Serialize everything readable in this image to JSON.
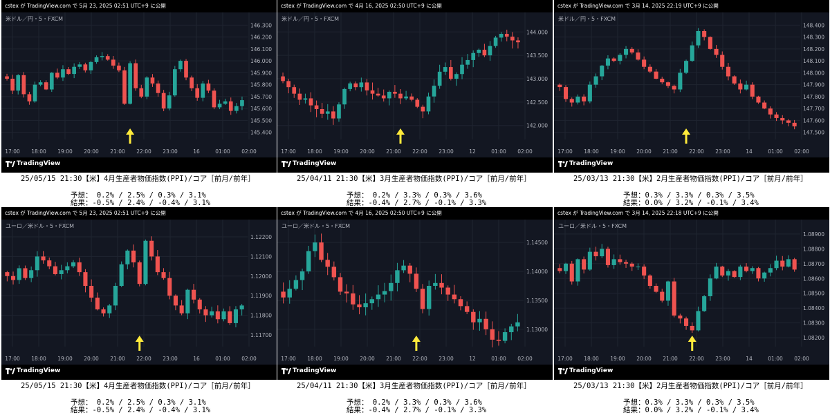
{
  "brand": "TradingView",
  "colors": {
    "bg": "#131722",
    "up": "#26a69a",
    "down": "#ef5350",
    "arrow": "#ffeb3b",
    "grid": "#1f2430",
    "text": "#b2b5be"
  },
  "panels": [
    {
      "header": "cstex が TradingView.com で 5月 23, 2025 02:51 UTC+9 に公開",
      "symbol": "米ドル／円・5・FXCM",
      "y_ticks": [
        "146.300",
        "146.200",
        "146.100",
        "146.000",
        "145.900",
        "145.800",
        "145.700",
        "145.600",
        "145.500",
        "145.400"
      ],
      "x_ticks": [
        "17:00",
        "18:00",
        "19:00",
        "20:00",
        "21:00",
        "22:00",
        "23:00",
        "16",
        "01:00",
        "02:00"
      ],
      "chart_data": {
        "type": "candlestick",
        "closes": [
          145.85,
          145.75,
          145.88,
          145.72,
          145.66,
          145.8,
          145.82,
          145.76,
          145.9,
          145.86,
          145.93,
          145.89,
          145.95,
          145.97,
          145.92,
          145.99,
          146.03,
          146.04,
          146.01,
          145.96,
          145.92,
          145.64,
          145.98,
          145.77,
          145.7,
          145.86,
          145.81,
          145.73,
          145.6,
          145.71,
          145.93,
          146.0,
          145.86,
          145.77,
          145.69,
          145.81,
          145.75,
          145.61,
          145.64,
          145.66,
          145.58,
          145.62,
          145.67
        ],
        "event_index": 22
      }
    },
    {
      "header": "cstex が TradingView.com で 4月 16, 2025 02:50 UTC+9 に公開",
      "symbol": "米ドル／円・5・FXCM",
      "y_ticks": [
        "144.000",
        "143.500",
        "143.000",
        "142.500",
        "142.000"
      ],
      "x_ticks": [
        "17:00",
        "18:00",
        "19:00",
        "20:00",
        "21:00",
        "22:00",
        "23:00",
        "12",
        "01:00",
        "02:00"
      ],
      "chart_data": {
        "type": "candlestick",
        "closes": [
          142.95,
          142.82,
          142.68,
          142.55,
          142.58,
          142.43,
          142.35,
          142.25,
          142.3,
          142.15,
          142.45,
          142.78,
          142.9,
          142.82,
          142.92,
          142.75,
          142.68,
          142.64,
          142.58,
          142.72,
          142.68,
          142.58,
          142.62,
          142.55,
          142.4,
          142.3,
          142.62,
          142.85,
          143.15,
          143.25,
          143.0,
          143.1,
          143.3,
          143.4,
          143.55,
          143.62,
          143.5,
          143.7,
          143.88,
          143.96,
          143.9,
          143.82,
          143.78
        ],
        "event_index": 21
      }
    },
    {
      "header": "cstex が TradingView.com で 3月 14, 2025 22:19 UTC+9 に公開",
      "symbol": "米ドル／円・5・FXCM",
      "y_ticks": [
        "148.400",
        "148.300",
        "148.200",
        "148.100",
        "148.000",
        "147.900",
        "147.800",
        "147.700",
        "147.600",
        "147.500"
      ],
      "x_ticks": [
        "17:00",
        "18:00",
        "19:00",
        "20:00",
        "21:00",
        "22:00",
        "23:00",
        "14",
        "01:00",
        "02:00"
      ],
      "chart_data": {
        "type": "candlestick",
        "closes": [
          147.88,
          147.78,
          147.75,
          147.8,
          147.76,
          147.9,
          147.97,
          148.06,
          148.12,
          148.1,
          148.15,
          148.2,
          148.17,
          148.11,
          148.05,
          148.01,
          147.95,
          147.92,
          147.89,
          147.86,
          148.0,
          148.1,
          148.23,
          148.35,
          148.3,
          148.2,
          148.15,
          148.05,
          147.97,
          147.91,
          147.86,
          147.9,
          147.8,
          147.75,
          147.7,
          147.65,
          147.62,
          147.6,
          147.58,
          147.55
        ],
        "event_index": 21
      }
    },
    {
      "header": "cstex が TradingView.com で 5月 23, 2025 02:51 UTC+9 に公開",
      "symbol": "ユーロ／米ドル・5・FXCM",
      "y_ticks": [
        "1.12200",
        "1.12100",
        "1.12000",
        "1.11900",
        "1.11800",
        "1.11700"
      ],
      "x_ticks": [
        "17:00",
        "18:00",
        "19:00",
        "20:00",
        "21:00",
        "22:00",
        "23:00",
        "16",
        "01:00",
        "02:00"
      ],
      "chart_data": {
        "type": "candlestick",
        "closes": [
          1.12,
          1.1198,
          1.1204,
          1.1199,
          1.1203,
          1.121,
          1.1208,
          1.1205,
          1.1201,
          1.1203,
          1.1205,
          1.1207,
          1.1202,
          1.1195,
          1.1189,
          1.1183,
          1.1181,
          1.1185,
          1.1195,
          1.1206,
          1.1213,
          1.1207,
          1.1196,
          1.1218,
          1.121,
          1.1202,
          1.1199,
          1.119,
          1.1185,
          1.1181,
          1.1193,
          1.1188,
          1.1183,
          1.118,
          1.1182,
          1.1178,
          1.1182,
          1.1176,
          1.1183,
          1.1185
        ],
        "event_index": 22
      }
    },
    {
      "header": "cstex が TradingView.com で 4月 16, 2025 02:50 UTC+9 に公開",
      "symbol": "ユーロ／米ドル・5・FXCM",
      "y_ticks": [
        "1.14500",
        "1.14000",
        "1.13500",
        "1.13000"
      ],
      "x_ticks": [
        "17:00",
        "18:00",
        "19:00",
        "20:00",
        "21:00",
        "22:00",
        "23:00",
        "12",
        "01:00",
        "02:00"
      ],
      "chart_data": {
        "type": "candlestick",
        "closes": [
          1.1355,
          1.137,
          1.1385,
          1.14,
          1.1435,
          1.145,
          1.142,
          1.1408,
          1.139,
          1.1365,
          1.1362,
          1.1343,
          1.1338,
          1.1345,
          1.1352,
          1.136,
          1.1366,
          1.138,
          1.1402,
          1.141,
          1.1396,
          1.137,
          1.1335,
          1.1375,
          1.138,
          1.1372,
          1.136,
          1.1352,
          1.134,
          1.133,
          1.1312,
          1.1318,
          1.13,
          1.1282,
          1.128,
          1.1295,
          1.1305,
          1.1312
        ],
        "event_index": 21
      }
    },
    {
      "header": "cstex が TradingView.com で 3月 14, 2025 22:18 UTC+9 に公開",
      "symbol": "ユーロ／米ドル・5・FXCM",
      "y_ticks": [
        "1.08900",
        "1.08800",
        "1.08700",
        "1.08600",
        "1.08500",
        "1.08400",
        "1.08300",
        "1.08200"
      ],
      "x_ticks": [
        "17:00",
        "18:00",
        "19:00",
        "20:00",
        "21:00",
        "22:00",
        "23:00",
        "14",
        "01:00",
        "02:00"
      ],
      "chart_data": {
        "type": "candlestick",
        "closes": [
          1.0865,
          1.087,
          1.0858,
          1.0873,
          1.0866,
          1.0878,
          1.0875,
          1.088,
          1.0869,
          1.0873,
          1.0871,
          1.087,
          1.0868,
          1.0868,
          1.0862,
          1.0855,
          1.0851,
          1.0845,
          1.0858,
          1.0835,
          1.0833,
          1.0828,
          1.0825,
          1.0838,
          1.0848,
          1.086,
          1.0868,
          1.0862,
          1.0865,
          1.0861,
          1.0868,
          1.0865,
          1.0867,
          1.086,
          1.0864,
          1.0867,
          1.0872,
          1.0868,
          1.0873,
          1.0866
        ],
        "event_index": 22
      }
    }
  ],
  "captions": [
    {
      "line1": "25/05/15  21:30【米】4月生産者物価指数(PPI)/コア［前月/前年］",
      "line2": "予想： 0.2% / 2.5% /  0.3% / 3.1%",
      "line3": "結果：-0.5% / 2.4% / -0.4% / 3.1%"
    },
    {
      "line1": "25/04/11  21:30【米】3月生産者物価指数(PPI)/コア［前月/前年］",
      "line2": "予想： 0.2% / 3.3% /  0.3% / 3.6%",
      "line3": "結果：-0.4% / 2.7% / -0.1% / 3.3%"
    },
    {
      "line1": "25/03/13  21:30【米】2月生産者物価指数(PPI)/コア［前月/前年］",
      "line2": "予想：0.3% / 3.3% /  0.3% / 3.5%",
      "line3": "結果：0.0% / 3.2% / -0.1% / 3.4%"
    },
    {
      "line1": "25/05/15  21:30【米】4月生産者物価指数(PPI)/コア［前月/前年］",
      "line2": "予想： 0.2% / 2.5% /  0.3% / 3.1%",
      "line3": "結果：-0.5% / 2.4% / -0.4% / 3.1%"
    },
    {
      "line1": "25/04/11  21:30【米】3月生産者物価指数(PPI)/コア［前月/前年］",
      "line2": "予想： 0.2% / 3.3% /  0.3% / 3.6%",
      "line3": "結果：-0.4% / 2.7% / -0.1% / 3.3%"
    },
    {
      "line1": "25/03/13  21:30【米】2月生産者物価指数(PPI)/コア［前月/前年］",
      "line2": "予想：0.3% / 3.3% /  0.3% / 3.5%",
      "line3": "結果：0.0% / 3.2% / -0.1% / 3.4%"
    }
  ]
}
